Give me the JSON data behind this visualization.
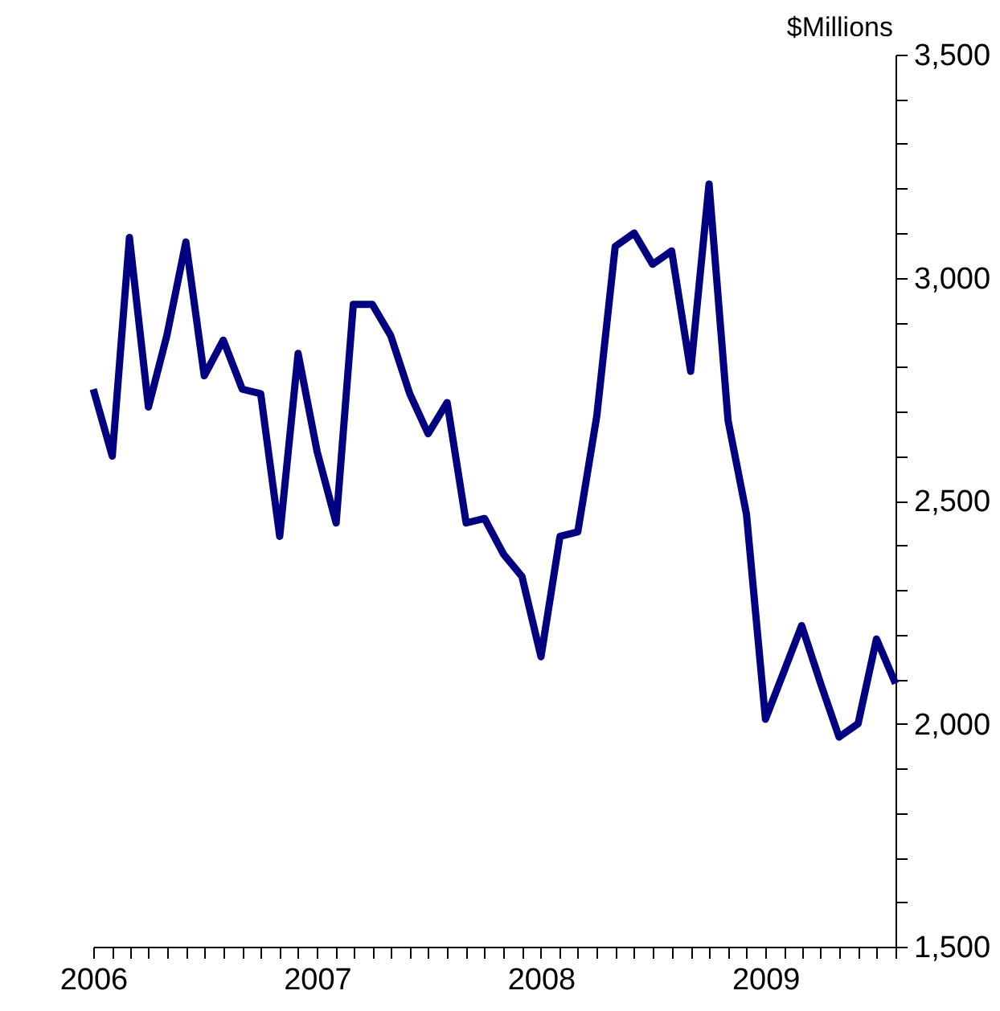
{
  "chart_data": {
    "type": "line",
    "ylabel": "$Millions",
    "x": [
      "2006-01",
      "2006-02",
      "2006-03",
      "2006-04",
      "2006-05",
      "2006-06",
      "2006-07",
      "2006-08",
      "2006-09",
      "2006-10",
      "2006-11",
      "2006-12",
      "2007-01",
      "2007-02",
      "2007-03",
      "2007-04",
      "2007-05",
      "2007-06",
      "2007-07",
      "2007-08",
      "2007-09",
      "2007-10",
      "2007-11",
      "2007-12",
      "2008-01",
      "2008-02",
      "2008-03",
      "2008-04",
      "2008-05",
      "2008-06",
      "2008-07",
      "2008-08",
      "2008-09",
      "2008-10",
      "2008-11",
      "2008-12",
      "2009-01",
      "2009-02",
      "2009-03",
      "2009-04",
      "2009-05",
      "2009-06",
      "2009-07",
      "2009-08"
    ],
    "series": [
      {
        "color": "#000080",
        "values": [
          2750,
          2600,
          3090,
          2710,
          2870,
          3080,
          2780,
          2860,
          2750,
          2740,
          2420,
          2830,
          2610,
          2450,
          2940,
          2940,
          2870,
          2740,
          2650,
          2720,
          2450,
          2460,
          2380,
          2330,
          2150,
          2420,
          2430,
          2690,
          3070,
          3100,
          3030,
          3060,
          2790,
          3210,
          2680,
          2470,
          2010,
          2120,
          2220,
          2090,
          1970,
          2000,
          2190,
          2090
        ]
      }
    ],
    "xlim": [
      "2006-01",
      "2009-08"
    ],
    "xticks": [
      {
        "value": "2006-01",
        "label": "2006"
      },
      {
        "value": "2006-02",
        "label": null
      },
      {
        "value": "2006-03",
        "label": null
      },
      {
        "value": "2006-04",
        "label": null
      },
      {
        "value": "2006-05",
        "label": null
      },
      {
        "value": "2006-06",
        "label": null
      },
      {
        "value": "2006-07",
        "label": null
      },
      {
        "value": "2006-08",
        "label": null
      },
      {
        "value": "2006-09",
        "label": null
      },
      {
        "value": "2006-10",
        "label": null
      },
      {
        "value": "2006-11",
        "label": null
      },
      {
        "value": "2006-12",
        "label": null
      },
      {
        "value": "2007-01",
        "label": "2007"
      },
      {
        "value": "2007-02",
        "label": null
      },
      {
        "value": "2007-03",
        "label": null
      },
      {
        "value": "2007-04",
        "label": null
      },
      {
        "value": "2007-05",
        "label": null
      },
      {
        "value": "2007-06",
        "label": null
      },
      {
        "value": "2007-07",
        "label": null
      },
      {
        "value": "2007-08",
        "label": null
      },
      {
        "value": "2007-09",
        "label": null
      },
      {
        "value": "2007-10",
        "label": null
      },
      {
        "value": "2007-11",
        "label": null
      },
      {
        "value": "2007-12",
        "label": null
      },
      {
        "value": "2008-01",
        "label": "2008"
      },
      {
        "value": "2008-02",
        "label": null
      },
      {
        "value": "2008-03",
        "label": null
      },
      {
        "value": "2008-04",
        "label": null
      },
      {
        "value": "2008-05",
        "label": null
      },
      {
        "value": "2008-06",
        "label": null
      },
      {
        "value": "2008-07",
        "label": null
      },
      {
        "value": "2008-08",
        "label": null
      },
      {
        "value": "2008-09",
        "label": null
      },
      {
        "value": "2008-10",
        "label": null
      },
      {
        "value": "2008-11",
        "label": null
      },
      {
        "value": "2008-12",
        "label": null
      },
      {
        "value": "2009-01",
        "label": "2009"
      },
      {
        "value": "2009-02",
        "label": null
      },
      {
        "value": "2009-03",
        "label": null
      },
      {
        "value": "2009-04",
        "label": null
      },
      {
        "value": "2009-05",
        "label": null
      },
      {
        "value": "2009-06",
        "label": null
      },
      {
        "value": "2009-07",
        "label": null
      },
      {
        "value": "2009-08",
        "label": null
      }
    ],
    "ylim": [
      1500,
      3500
    ],
    "yticks": [
      {
        "value": 1500,
        "label": "1,500"
      },
      {
        "value": 1600,
        "label": null
      },
      {
        "value": 1700,
        "label": null
      },
      {
        "value": 1800,
        "label": null
      },
      {
        "value": 1900,
        "label": null
      },
      {
        "value": 2000,
        "label": "2,000"
      },
      {
        "value": 2100,
        "label": null
      },
      {
        "value": 2200,
        "label": null
      },
      {
        "value": 2300,
        "label": null
      },
      {
        "value": 2400,
        "label": null
      },
      {
        "value": 2500,
        "label": "2,500"
      },
      {
        "value": 2600,
        "label": null
      },
      {
        "value": 2700,
        "label": null
      },
      {
        "value": 2800,
        "label": null
      },
      {
        "value": 2900,
        "label": null
      },
      {
        "value": 3000,
        "label": "3,000"
      },
      {
        "value": 3100,
        "label": null
      },
      {
        "value": 3200,
        "label": null
      },
      {
        "value": 3300,
        "label": null
      },
      {
        "value": 3400,
        "label": null
      },
      {
        "value": 3500,
        "label": "3,500"
      }
    ],
    "grid": false,
    "marker": "none",
    "line_style": "solid"
  }
}
